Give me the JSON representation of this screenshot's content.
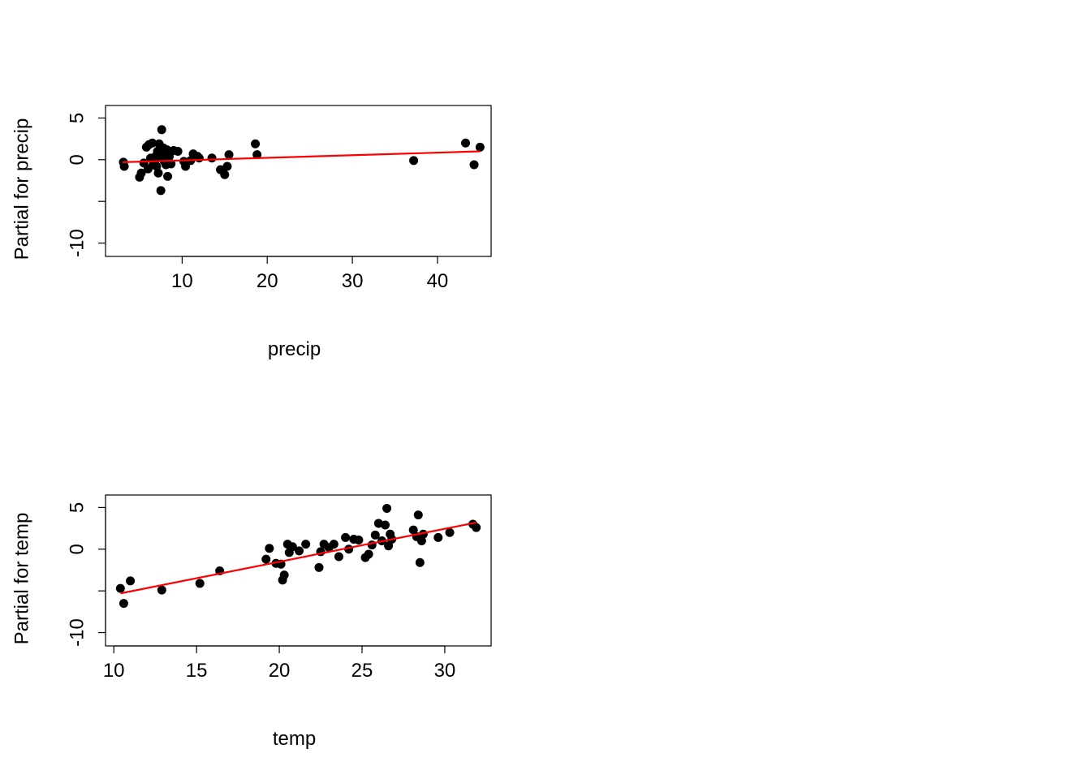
{
  "chart_data": [
    {
      "type": "scatter",
      "title": "",
      "xlabel": "precip",
      "ylabel": "Partial for precip",
      "xlim": [
        1.0,
        46.3
      ],
      "ylim": [
        -11.6,
        6.5
      ],
      "xticks": [
        10,
        20,
        30,
        40
      ],
      "yticks": [
        5,
        0,
        -5,
        -10
      ],
      "ytick_labels": [
        "5",
        "0",
        "",
        "-10"
      ],
      "grid": false,
      "line_color": "#ff0000",
      "point_color": "#000000",
      "fit_line": {
        "x": [
          3,
          45
        ],
        "y": [
          -0.3,
          1.0
        ]
      },
      "points": [
        [
          3.1,
          -0.3
        ],
        [
          3.2,
          -0.8
        ],
        [
          5.0,
          -2.1
        ],
        [
          5.2,
          -1.6
        ],
        [
          5.5,
          -0.4
        ],
        [
          5.8,
          1.5
        ],
        [
          6.0,
          -1.1
        ],
        [
          6.1,
          1.8
        ],
        [
          6.3,
          0.2
        ],
        [
          6.5,
          2.0
        ],
        [
          6.6,
          -0.6
        ],
        [
          6.8,
          -0.1
        ],
        [
          6.9,
          0.4
        ],
        [
          7.0,
          -0.8
        ],
        [
          7.1,
          1.0
        ],
        [
          7.2,
          -1.6
        ],
        [
          7.3,
          1.9
        ],
        [
          7.4,
          0.5
        ],
        [
          7.5,
          -3.7
        ],
        [
          7.6,
          3.6
        ],
        [
          7.7,
          0.3
        ],
        [
          7.8,
          1.4
        ],
        [
          7.9,
          -0.2
        ],
        [
          8.0,
          0.8
        ],
        [
          8.1,
          -0.6
        ],
        [
          8.2,
          1.2
        ],
        [
          8.3,
          -2.0
        ],
        [
          8.5,
          0.4
        ],
        [
          8.7,
          -0.5
        ],
        [
          9.0,
          1.1
        ],
        [
          9.5,
          1.0
        ],
        [
          10.2,
          -0.2
        ],
        [
          10.4,
          -0.8
        ],
        [
          11.0,
          -0.1
        ],
        [
          11.3,
          0.7
        ],
        [
          11.8,
          0.4
        ],
        [
          12.0,
          0.2
        ],
        [
          13.5,
          0.2
        ],
        [
          14.5,
          -1.2
        ],
        [
          15.0,
          -1.8
        ],
        [
          15.3,
          -0.8
        ],
        [
          15.5,
          0.6
        ],
        [
          18.6,
          1.9
        ],
        [
          18.8,
          0.6
        ],
        [
          37.2,
          -0.1
        ],
        [
          43.3,
          2.0
        ],
        [
          44.3,
          -0.6
        ],
        [
          45.0,
          1.5
        ]
      ]
    },
    {
      "type": "scatter",
      "title": "",
      "xlabel": "temp",
      "ylabel": "Partial for temp",
      "xlim": [
        9.5,
        32.8
      ],
      "ylim": [
        -11.6,
        6.5
      ],
      "xticks": [
        10,
        15,
        20,
        25,
        30
      ],
      "yticks": [
        5,
        0,
        -5,
        -10
      ],
      "ytick_labels": [
        "5",
        "0",
        "",
        "-10"
      ],
      "grid": false,
      "line_color": "#ff0000",
      "point_color": "#000000",
      "fit_line": {
        "x": [
          10.4,
          31.9
        ],
        "y": [
          -5.3,
          3.2
        ]
      },
      "points": [
        [
          10.4,
          -4.7
        ],
        [
          10.6,
          -6.5
        ],
        [
          11.0,
          -3.8
        ],
        [
          12.9,
          -4.9
        ],
        [
          15.2,
          -4.1
        ],
        [
          16.4,
          -2.6
        ],
        [
          19.2,
          -1.2
        ],
        [
          19.4,
          0.1
        ],
        [
          19.8,
          -1.7
        ],
        [
          20.1,
          -1.8
        ],
        [
          20.2,
          -3.7
        ],
        [
          20.3,
          -3.1
        ],
        [
          20.5,
          0.6
        ],
        [
          20.6,
          -0.4
        ],
        [
          20.8,
          0.3
        ],
        [
          21.2,
          -0.2
        ],
        [
          21.6,
          0.6
        ],
        [
          22.4,
          -2.2
        ],
        [
          22.5,
          -0.3
        ],
        [
          22.7,
          0.6
        ],
        [
          23.0,
          0.2
        ],
        [
          23.3,
          0.6
        ],
        [
          23.6,
          -0.9
        ],
        [
          24.0,
          1.4
        ],
        [
          24.2,
          0.0
        ],
        [
          24.5,
          1.2
        ],
        [
          24.8,
          1.1
        ],
        [
          25.2,
          -1.0
        ],
        [
          25.4,
          -0.6
        ],
        [
          25.6,
          0.5
        ],
        [
          25.8,
          1.7
        ],
        [
          26.0,
          3.1
        ],
        [
          26.2,
          1.0
        ],
        [
          26.4,
          2.9
        ],
        [
          26.5,
          4.9
        ],
        [
          26.6,
          0.4
        ],
        [
          26.7,
          1.8
        ],
        [
          26.8,
          1.2
        ],
        [
          28.1,
          2.3
        ],
        [
          28.3,
          1.5
        ],
        [
          28.4,
          4.1
        ],
        [
          28.5,
          -1.6
        ],
        [
          28.6,
          1.0
        ],
        [
          28.7,
          1.8
        ],
        [
          29.6,
          1.4
        ],
        [
          30.3,
          2.0
        ],
        [
          31.7,
          3.0
        ],
        [
          31.9,
          2.6
        ]
      ]
    }
  ]
}
